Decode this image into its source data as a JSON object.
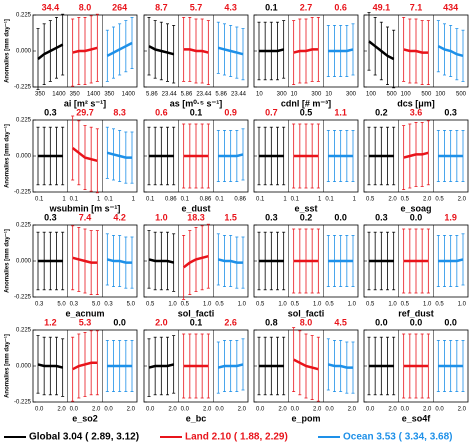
{
  "chart_data": {
    "type": "errorbar",
    "ylabel": "Anomalies [mm day⁻¹]",
    "ylim": [
      -0.225,
      0.225
    ],
    "yticks": [
      {
        "value": -0.225,
        "label": "-0.225"
      },
      {
        "value": 0,
        "label": "0.000"
      },
      {
        "value": 0.225,
        "label": "0.225"
      }
    ],
    "legend": [
      {
        "label": "Global 3.04 ( 2.89, 3.12)",
        "color": "#000000"
      },
      {
        "label": "Land 2.10 ( 1.88, 2.29)",
        "color": "#e8141b"
      },
      {
        "label": "Ocean 3.53 ( 3.34, 3.68)",
        "color": "#1e90e8"
      }
    ],
    "panels": [
      {
        "xlabel": "ai [m² s⁻¹]",
        "xticks": [
          "350",
          "1400"
        ],
        "stats": [
          {
            "text": "34.4",
            "color": "#e8141b"
          },
          {
            "text": "8.0",
            "color": "#e8141b"
          },
          {
            "text": "264",
            "color": "#e8141b"
          }
        ],
        "series": [
          {
            "values": [
              -0.05,
              -0.02,
              0,
              0.02,
              0.04
            ],
            "error": 0.19
          },
          {
            "values": [
              -0.01,
              0,
              0,
              0.01,
              0.02
            ],
            "error": 0.21
          },
          {
            "values": [
              -0.03,
              -0.01,
              0.01,
              0.03,
              0.05
            ],
            "error": 0.16
          }
        ]
      },
      {
        "xlabel": "as [m⁰·⁵ s⁻¹]",
        "xticks": [
          "5.86",
          "23.44"
        ],
        "stats": [
          {
            "text": "8.7",
            "color": "#e8141b"
          },
          {
            "text": "5.7",
            "color": "#e8141b"
          },
          {
            "text": "4.3",
            "color": "#e8141b"
          }
        ],
        "series": [
          {
            "values": [
              0.03,
              0.01,
              0,
              -0.01,
              -0.02
            ],
            "error": 0.18
          },
          {
            "values": [
              0.01,
              0.01,
              0,
              0,
              -0.01
            ],
            "error": 0.2
          },
          {
            "values": [
              0.02,
              0.01,
              0,
              -0.01,
              -0.02
            ],
            "error": 0.16
          }
        ]
      },
      {
        "xlabel": "cdnl [# m⁻³]",
        "xticks": [
          "10",
          "300"
        ],
        "stats": [
          {
            "text": "0.1",
            "color": "#000000"
          },
          {
            "text": "2.7",
            "color": "#e8141b"
          },
          {
            "text": "0.6",
            "color": "#e8141b"
          }
        ],
        "series": [
          {
            "values": [
              0,
              0,
              0,
              0,
              0.01
            ],
            "error": 0.18
          },
          {
            "values": [
              -0.01,
              0,
              0,
              0.01,
              0.01
            ],
            "error": 0.2
          },
          {
            "values": [
              0,
              0,
              0,
              0,
              0.01
            ],
            "error": 0.16
          }
        ]
      },
      {
        "xlabel": "dcs [μm]",
        "xticks": [
          "100",
          "500"
        ],
        "stats": [
          {
            "text": "49.1",
            "color": "#e8141b"
          },
          {
            "text": "7.1",
            "color": "#e8141b"
          },
          {
            "text": "434",
            "color": "#e8141b"
          }
        ],
        "series": [
          {
            "values": [
              0.06,
              0.03,
              0,
              -0.03,
              -0.05
            ],
            "error": 0.18
          },
          {
            "values": [
              0.01,
              0,
              0,
              -0.01,
              -0.01
            ],
            "error": 0.2
          },
          {
            "values": [
              0.03,
              0.01,
              0,
              -0.02,
              -0.03
            ],
            "error": 0.16
          }
        ]
      },
      {
        "xlabel": "wsubmin [m s⁻¹]",
        "xticks": [
          "0.1",
          "1"
        ],
        "stats": [
          {
            "text": "0.3",
            "color": "#000000"
          },
          {
            "text": "29.7",
            "color": "#e8141b"
          },
          {
            "text": "8.3",
            "color": "#e8141b"
          }
        ],
        "series": [
          {
            "values": [
              0,
              0,
              0,
              0,
              0
            ],
            "error": 0.18
          },
          {
            "values": [
              0.05,
              0.02,
              -0.01,
              -0.02,
              -0.03
            ],
            "error": 0.2
          },
          {
            "values": [
              0.02,
              0.01,
              0,
              -0.01,
              -0.01
            ],
            "error": 0.16
          }
        ]
      },
      {
        "xlabel": "e_dust",
        "xticks": [
          "0.1",
          "0.86"
        ],
        "stats": [
          {
            "text": "0.6",
            "color": "#e8141b"
          },
          {
            "text": "0.1",
            "color": "#000000"
          },
          {
            "text": "0.9",
            "color": "#e8141b"
          }
        ],
        "series": [
          {
            "values": [
              0,
              0,
              0,
              0,
              0
            ],
            "error": 0.18
          },
          {
            "values": [
              0,
              0,
              0,
              0,
              0
            ],
            "error": 0.2
          },
          {
            "values": [
              0,
              0,
              0,
              0,
              0.01
            ],
            "error": 0.16
          }
        ]
      },
      {
        "xlabel": "e_sst",
        "xticks": [
          "0.1",
          "1"
        ],
        "stats": [
          {
            "text": "0.7",
            "color": "#e8141b"
          },
          {
            "text": "0.5",
            "color": "#000000"
          },
          {
            "text": "1.1",
            "color": "#e8141b"
          }
        ],
        "series": [
          {
            "values": [
              0,
              0,
              0,
              0,
              0
            ],
            "error": 0.18
          },
          {
            "values": [
              0,
              0,
              0,
              0,
              0
            ],
            "error": 0.2
          },
          {
            "values": [
              0,
              0,
              0,
              0,
              0
            ],
            "error": 0.16
          }
        ]
      },
      {
        "xlabel": "e_soag",
        "xticks": [
          "0.5",
          "2.0"
        ],
        "stats": [
          {
            "text": "0.2",
            "color": "#000000"
          },
          {
            "text": "3.6",
            "color": "#e8141b"
          },
          {
            "text": "0.3",
            "color": "#000000"
          }
        ],
        "series": [
          {
            "values": [
              0,
              0,
              0,
              0,
              0
            ],
            "error": 0.18
          },
          {
            "values": [
              -0.01,
              0,
              0.01,
              0.01,
              0.02
            ],
            "error": 0.2
          },
          {
            "values": [
              0,
              0,
              0,
              0,
              0
            ],
            "error": 0.16
          }
        ]
      },
      {
        "xlabel": "e_acnum",
        "xticks": [
          "0.3",
          "5.0"
        ],
        "stats": [
          {
            "text": "0.3",
            "color": "#000000"
          },
          {
            "text": "7.4",
            "color": "#e8141b"
          },
          {
            "text": "4.2",
            "color": "#e8141b"
          }
        ],
        "series": [
          {
            "values": [
              0,
              0,
              0,
              0,
              0
            ],
            "error": 0.18
          },
          {
            "values": [
              0.02,
              0.01,
              0,
              -0.01,
              -0.01
            ],
            "error": 0.2
          },
          {
            "values": [
              0.01,
              0,
              0,
              -0.01,
              -0.01
            ],
            "error": 0.16
          }
        ]
      },
      {
        "xlabel": "sol_facti",
        "xticks": [
          "0.5",
          "1.0"
        ],
        "stats": [
          {
            "text": "1.0",
            "color": "#e8141b"
          },
          {
            "text": "18.3",
            "color": "#e8141b"
          },
          {
            "text": "1.5",
            "color": "#e8141b"
          }
        ],
        "series": [
          {
            "values": [
              0.01,
              0,
              0,
              0,
              -0.01
            ],
            "error": 0.18
          },
          {
            "values": [
              -0.04,
              -0.01,
              0.01,
              0.02,
              0.03
            ],
            "error": 0.2
          },
          {
            "values": [
              0.01,
              0,
              0,
              -0.01,
              -0.01
            ],
            "error": 0.16
          }
        ]
      },
      {
        "xlabel": "sol_facti",
        "xticks": [
          "0.5",
          "1.0"
        ],
        "stats": [
          {
            "text": "0.3",
            "color": "#000000"
          },
          {
            "text": "0.2",
            "color": "#000000"
          },
          {
            "text": "0.0",
            "color": "#000000"
          }
        ],
        "series": [
          {
            "values": [
              0,
              0,
              0,
              0,
              0
            ],
            "error": 0.18
          },
          {
            "values": [
              0,
              0,
              0,
              0,
              0
            ],
            "error": 0.2
          },
          {
            "values": [
              0,
              0,
              0,
              0,
              0
            ],
            "error": 0.16
          }
        ]
      },
      {
        "xlabel": "ref_dust",
        "xticks": [
          "0.5",
          "1.0"
        ],
        "stats": [
          {
            "text": "0.3",
            "color": "#000000"
          },
          {
            "text": "0.0",
            "color": "#000000"
          },
          {
            "text": "1.9",
            "color": "#e8141b"
          }
        ],
        "series": [
          {
            "values": [
              0,
              0,
              0,
              0,
              0
            ],
            "error": 0.18
          },
          {
            "values": [
              0,
              0,
              0,
              0,
              0
            ],
            "error": 0.2
          },
          {
            "values": [
              0,
              0,
              0,
              0,
              0.01
            ],
            "error": 0.16
          }
        ]
      },
      {
        "xlabel": "e_so2",
        "xticks": [
          "0.0",
          "2.0"
        ],
        "stats": [
          {
            "text": "1.2",
            "color": "#e8141b"
          },
          {
            "text": "5.3",
            "color": "#e8141b"
          },
          {
            "text": "0.0",
            "color": "#000000"
          }
        ],
        "series": [
          {
            "values": [
              0.01,
              0,
              0,
              0,
              -0.01
            ],
            "error": 0.18
          },
          {
            "values": [
              -0.02,
              0,
              0.01,
              0.02,
              0.02
            ],
            "error": 0.2
          },
          {
            "values": [
              0,
              0,
              0,
              0,
              0
            ],
            "error": 0.16
          }
        ]
      },
      {
        "xlabel": "e_bc",
        "xticks": [
          "0.0",
          "2.0"
        ],
        "stats": [
          {
            "text": "2.0",
            "color": "#e8141b"
          },
          {
            "text": "0.1",
            "color": "#000000"
          },
          {
            "text": "2.6",
            "color": "#e8141b"
          }
        ],
        "series": [
          {
            "values": [
              -0.01,
              0,
              0,
              0,
              0.01
            ],
            "error": 0.18
          },
          {
            "values": [
              0,
              0,
              0,
              0,
              0
            ],
            "error": 0.2
          },
          {
            "values": [
              -0.01,
              0,
              0,
              0,
              0.01
            ],
            "error": 0.16
          }
        ]
      },
      {
        "xlabel": "e_pom",
        "xticks": [
          "0.0",
          "2.0"
        ],
        "stats": [
          {
            "text": "0.8",
            "color": "#000000"
          },
          {
            "text": "8.0",
            "color": "#e8141b"
          },
          {
            "text": "4.5",
            "color": "#e8141b"
          }
        ],
        "series": [
          {
            "values": [
              0,
              0,
              0,
              0,
              0
            ],
            "error": 0.18
          },
          {
            "values": [
              0.04,
              0.02,
              0,
              -0.01,
              -0.02
            ],
            "error": 0.2
          },
          {
            "values": [
              0.01,
              0,
              0,
              -0.01,
              -0.01
            ],
            "error": 0.16
          }
        ]
      },
      {
        "xlabel": "e_so4f",
        "xticks": [
          "0.0",
          "2.0"
        ],
        "stats": [
          {
            "text": "0.0",
            "color": "#000000"
          },
          {
            "text": "0.0",
            "color": "#000000"
          },
          {
            "text": "0.0",
            "color": "#000000"
          }
        ],
        "series": [
          {
            "values": [
              0,
              0,
              0,
              0,
              0
            ],
            "error": 0.18
          },
          {
            "values": [
              0,
              0,
              0,
              0,
              0
            ],
            "error": 0.2
          },
          {
            "values": [
              0,
              0,
              0,
              0,
              0
            ],
            "error": 0.16
          }
        ]
      }
    ]
  }
}
